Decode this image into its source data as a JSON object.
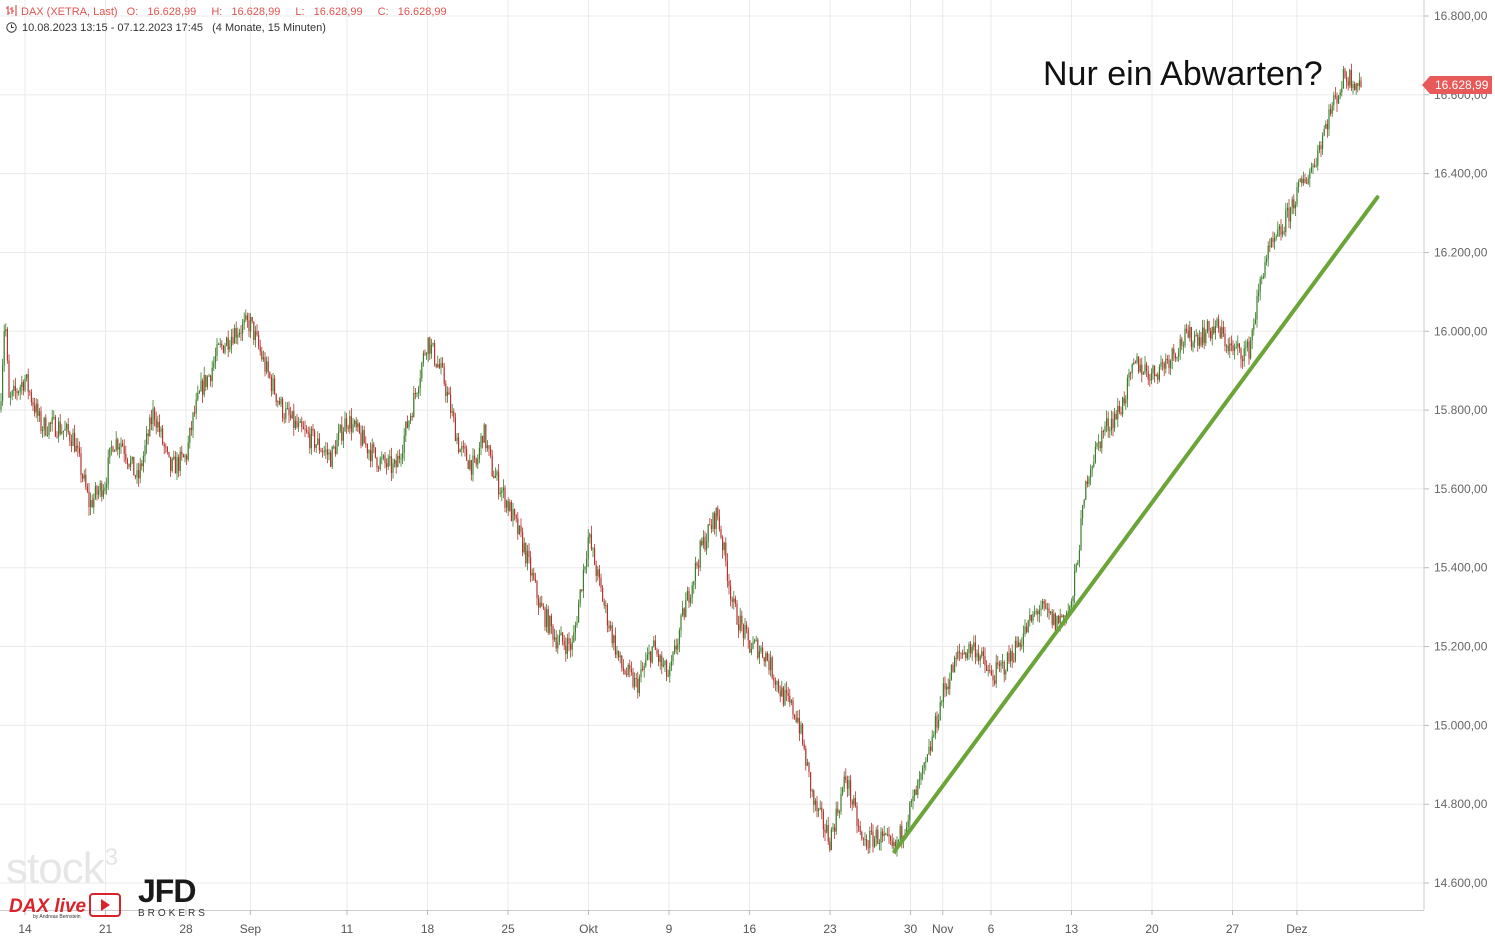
{
  "header": {
    "instrument": "DAX (XETRA, Last)",
    "ohlc": [
      {
        "label": "O:",
        "value": "16.628,99"
      },
      {
        "label": "H:",
        "value": "16.628,99"
      },
      {
        "label": "L:",
        "value": "16.628,99"
      },
      {
        "label": "C:",
        "value": "16.628,99"
      }
    ],
    "period": "10.08.2023 13:15 - 07.12.2023 17:45",
    "timeframe": "(4 Monate, 15 Minuten)"
  },
  "annotation": "Nur ein Abwarten?",
  "last_price_label": "16.628,99",
  "logos": {
    "stock3": "stock",
    "stock3_sup": "3",
    "dax_live": "DAX live",
    "dax_live_by": "by Andreas Bernstein",
    "jfd": "JFD",
    "jfd_sub": "BROKERS"
  },
  "colors": {
    "up": "#3a7d2a",
    "down": "#b5332e",
    "trendline": "#6ba539",
    "header": "#e0544f",
    "price_tag": "#e85a5a",
    "grid": "#ebebeb"
  },
  "chart_data": {
    "type": "candlestick",
    "title": "DAX (XETRA, Last)",
    "interval": "15 Minuten",
    "ylim": [
      14500,
      16850
    ],
    "yticks": [
      14600,
      14800,
      15000,
      15200,
      15400,
      15600,
      15800,
      16000,
      16200,
      16400,
      16600,
      16800
    ],
    "ytick_labels": [
      "14.600,00",
      "14.800,00",
      "15.000,00",
      "15.200,00",
      "15.400,00",
      "15.600,00",
      "15.800,00",
      "16.000,00",
      "16.200,00",
      "16.400,00",
      "16.600,00",
      "16.800,00"
    ],
    "x_labels": [
      {
        "label": "14",
        "date": "2023-08-14"
      },
      {
        "label": "21",
        "date": "2023-08-21"
      },
      {
        "label": "28",
        "date": "2023-08-28"
      },
      {
        "label": "Sep",
        "date": "2023-09-01"
      },
      {
        "label": "11",
        "date": "2023-09-11"
      },
      {
        "label": "18",
        "date": "2023-09-18"
      },
      {
        "label": "25",
        "date": "2023-09-25"
      },
      {
        "label": "Okt",
        "date": "2023-10-02"
      },
      {
        "label": "9",
        "date": "2023-10-09"
      },
      {
        "label": "16",
        "date": "2023-10-16"
      },
      {
        "label": "23",
        "date": "2023-10-23"
      },
      {
        "label": "30",
        "date": "2023-10-30"
      },
      {
        "label": "Nov",
        "date": "2023-11-01"
      },
      {
        "label": "6",
        "date": "2023-11-06"
      },
      {
        "label": "13",
        "date": "2023-11-13"
      },
      {
        "label": "20",
        "date": "2023-11-20"
      },
      {
        "label": "27",
        "date": "2023-11-27"
      },
      {
        "label": "Dez",
        "date": "2023-12-01"
      }
    ],
    "path": [
      [
        "2023-08-10",
        15900
      ],
      [
        "2023-08-10",
        16050
      ],
      [
        "2023-08-11",
        15820
      ],
      [
        "2023-08-14",
        15880
      ],
      [
        "2023-08-15",
        15760
      ],
      [
        "2023-08-16",
        15760
      ],
      [
        "2023-08-17",
        15730
      ],
      [
        "2023-08-18",
        15560
      ],
      [
        "2023-08-21",
        15620
      ],
      [
        "2023-08-21",
        15720
      ],
      [
        "2023-08-22",
        15720
      ],
      [
        "2023-08-23",
        15620
      ],
      [
        "2023-08-24",
        15800
      ],
      [
        "2023-08-25",
        15650
      ],
      [
        "2023-08-28",
        15680
      ],
      [
        "2023-08-28",
        15780
      ],
      [
        "2023-08-29",
        15860
      ],
      [
        "2023-08-29",
        15890
      ],
      [
        "2023-08-30",
        15950
      ],
      [
        "2023-08-31",
        16000
      ],
      [
        "2023-09-01",
        16020
      ],
      [
        "2023-09-04",
        15900
      ],
      [
        "2023-09-05",
        15800
      ],
      [
        "2023-09-06",
        15750
      ],
      [
        "2023-09-07",
        15720
      ],
      [
        "2023-09-08",
        15680
      ],
      [
        "2023-09-11",
        15780
      ],
      [
        "2023-09-12",
        15720
      ],
      [
        "2023-09-13",
        15670
      ],
      [
        "2023-09-14",
        15650
      ],
      [
        "2023-09-15",
        15800
      ],
      [
        "2023-09-18",
        15980
      ],
      [
        "2023-09-19",
        15880
      ],
      [
        "2023-09-20",
        15700
      ],
      [
        "2023-09-21",
        15650
      ],
      [
        "2023-09-21",
        15750
      ],
      [
        "2023-09-22",
        15650
      ],
      [
        "2023-09-25",
        15560
      ],
      [
        "2023-09-26",
        15450
      ],
      [
        "2023-09-27",
        15300
      ],
      [
        "2023-09-28",
        15220
      ],
      [
        "2023-09-29",
        15200
      ],
      [
        "2023-10-02",
        15480
      ],
      [
        "2023-10-03",
        15300
      ],
      [
        "2023-10-04",
        15150
      ],
      [
        "2023-10-05",
        15100
      ],
      [
        "2023-10-06",
        15200
      ],
      [
        "2023-10-06",
        15160
      ],
      [
        "2023-10-09",
        15120
      ],
      [
        "2023-10-10",
        15300
      ],
      [
        "2023-10-11",
        15450
      ],
      [
        "2023-10-12",
        15540
      ],
      [
        "2023-10-13",
        15300
      ],
      [
        "2023-10-16",
        15200
      ],
      [
        "2023-10-16",
        15200
      ],
      [
        "2023-10-17",
        15180
      ],
      [
        "2023-10-18",
        15080
      ],
      [
        "2023-10-19",
        15020
      ],
      [
        "2023-10-20",
        14800
      ],
      [
        "2023-10-23",
        14710
      ],
      [
        "2023-10-24",
        14870
      ],
      [
        "2023-10-25",
        14700
      ],
      [
        "2023-10-26",
        14720
      ],
      [
        "2023-10-27",
        14680
      ],
      [
        "2023-10-30",
        14790
      ],
      [
        "2023-10-31",
        14900
      ],
      [
        "2023-11-01",
        15080
      ],
      [
        "2023-11-02",
        15180
      ],
      [
        "2023-11-03",
        15200
      ],
      [
        "2023-11-06",
        15120
      ],
      [
        "2023-11-07",
        15160
      ],
      [
        "2023-11-08",
        15230
      ],
      [
        "2023-11-09",
        15300
      ],
      [
        "2023-11-10",
        15260
      ],
      [
        "2023-11-13",
        15300
      ],
      [
        "2023-11-14",
        15640
      ],
      [
        "2023-11-15",
        15750
      ],
      [
        "2023-11-16",
        15800
      ],
      [
        "2023-11-17",
        15920
      ],
      [
        "2023-11-20",
        15890
      ],
      [
        "2023-11-21",
        15930
      ],
      [
        "2023-11-22",
        15980
      ],
      [
        "2023-11-23",
        15990
      ],
      [
        "2023-11-24",
        16010
      ],
      [
        "2023-11-27",
        15950
      ],
      [
        "2023-11-28",
        15950
      ],
      [
        "2023-11-29",
        16180
      ],
      [
        "2023-11-30",
        16250
      ],
      [
        "2023-12-01",
        16350
      ],
      [
        "2023-12-04",
        16420
      ],
      [
        "2023-12-05",
        16550
      ],
      [
        "2023-12-06",
        16650
      ],
      [
        "2023-12-07",
        16628.99
      ]
    ],
    "last": 16628.99,
    "trendline": {
      "start": [
        "2023-10-27",
        14680
      ],
      "end": [
        "2023-12-08",
        16340
      ]
    }
  }
}
